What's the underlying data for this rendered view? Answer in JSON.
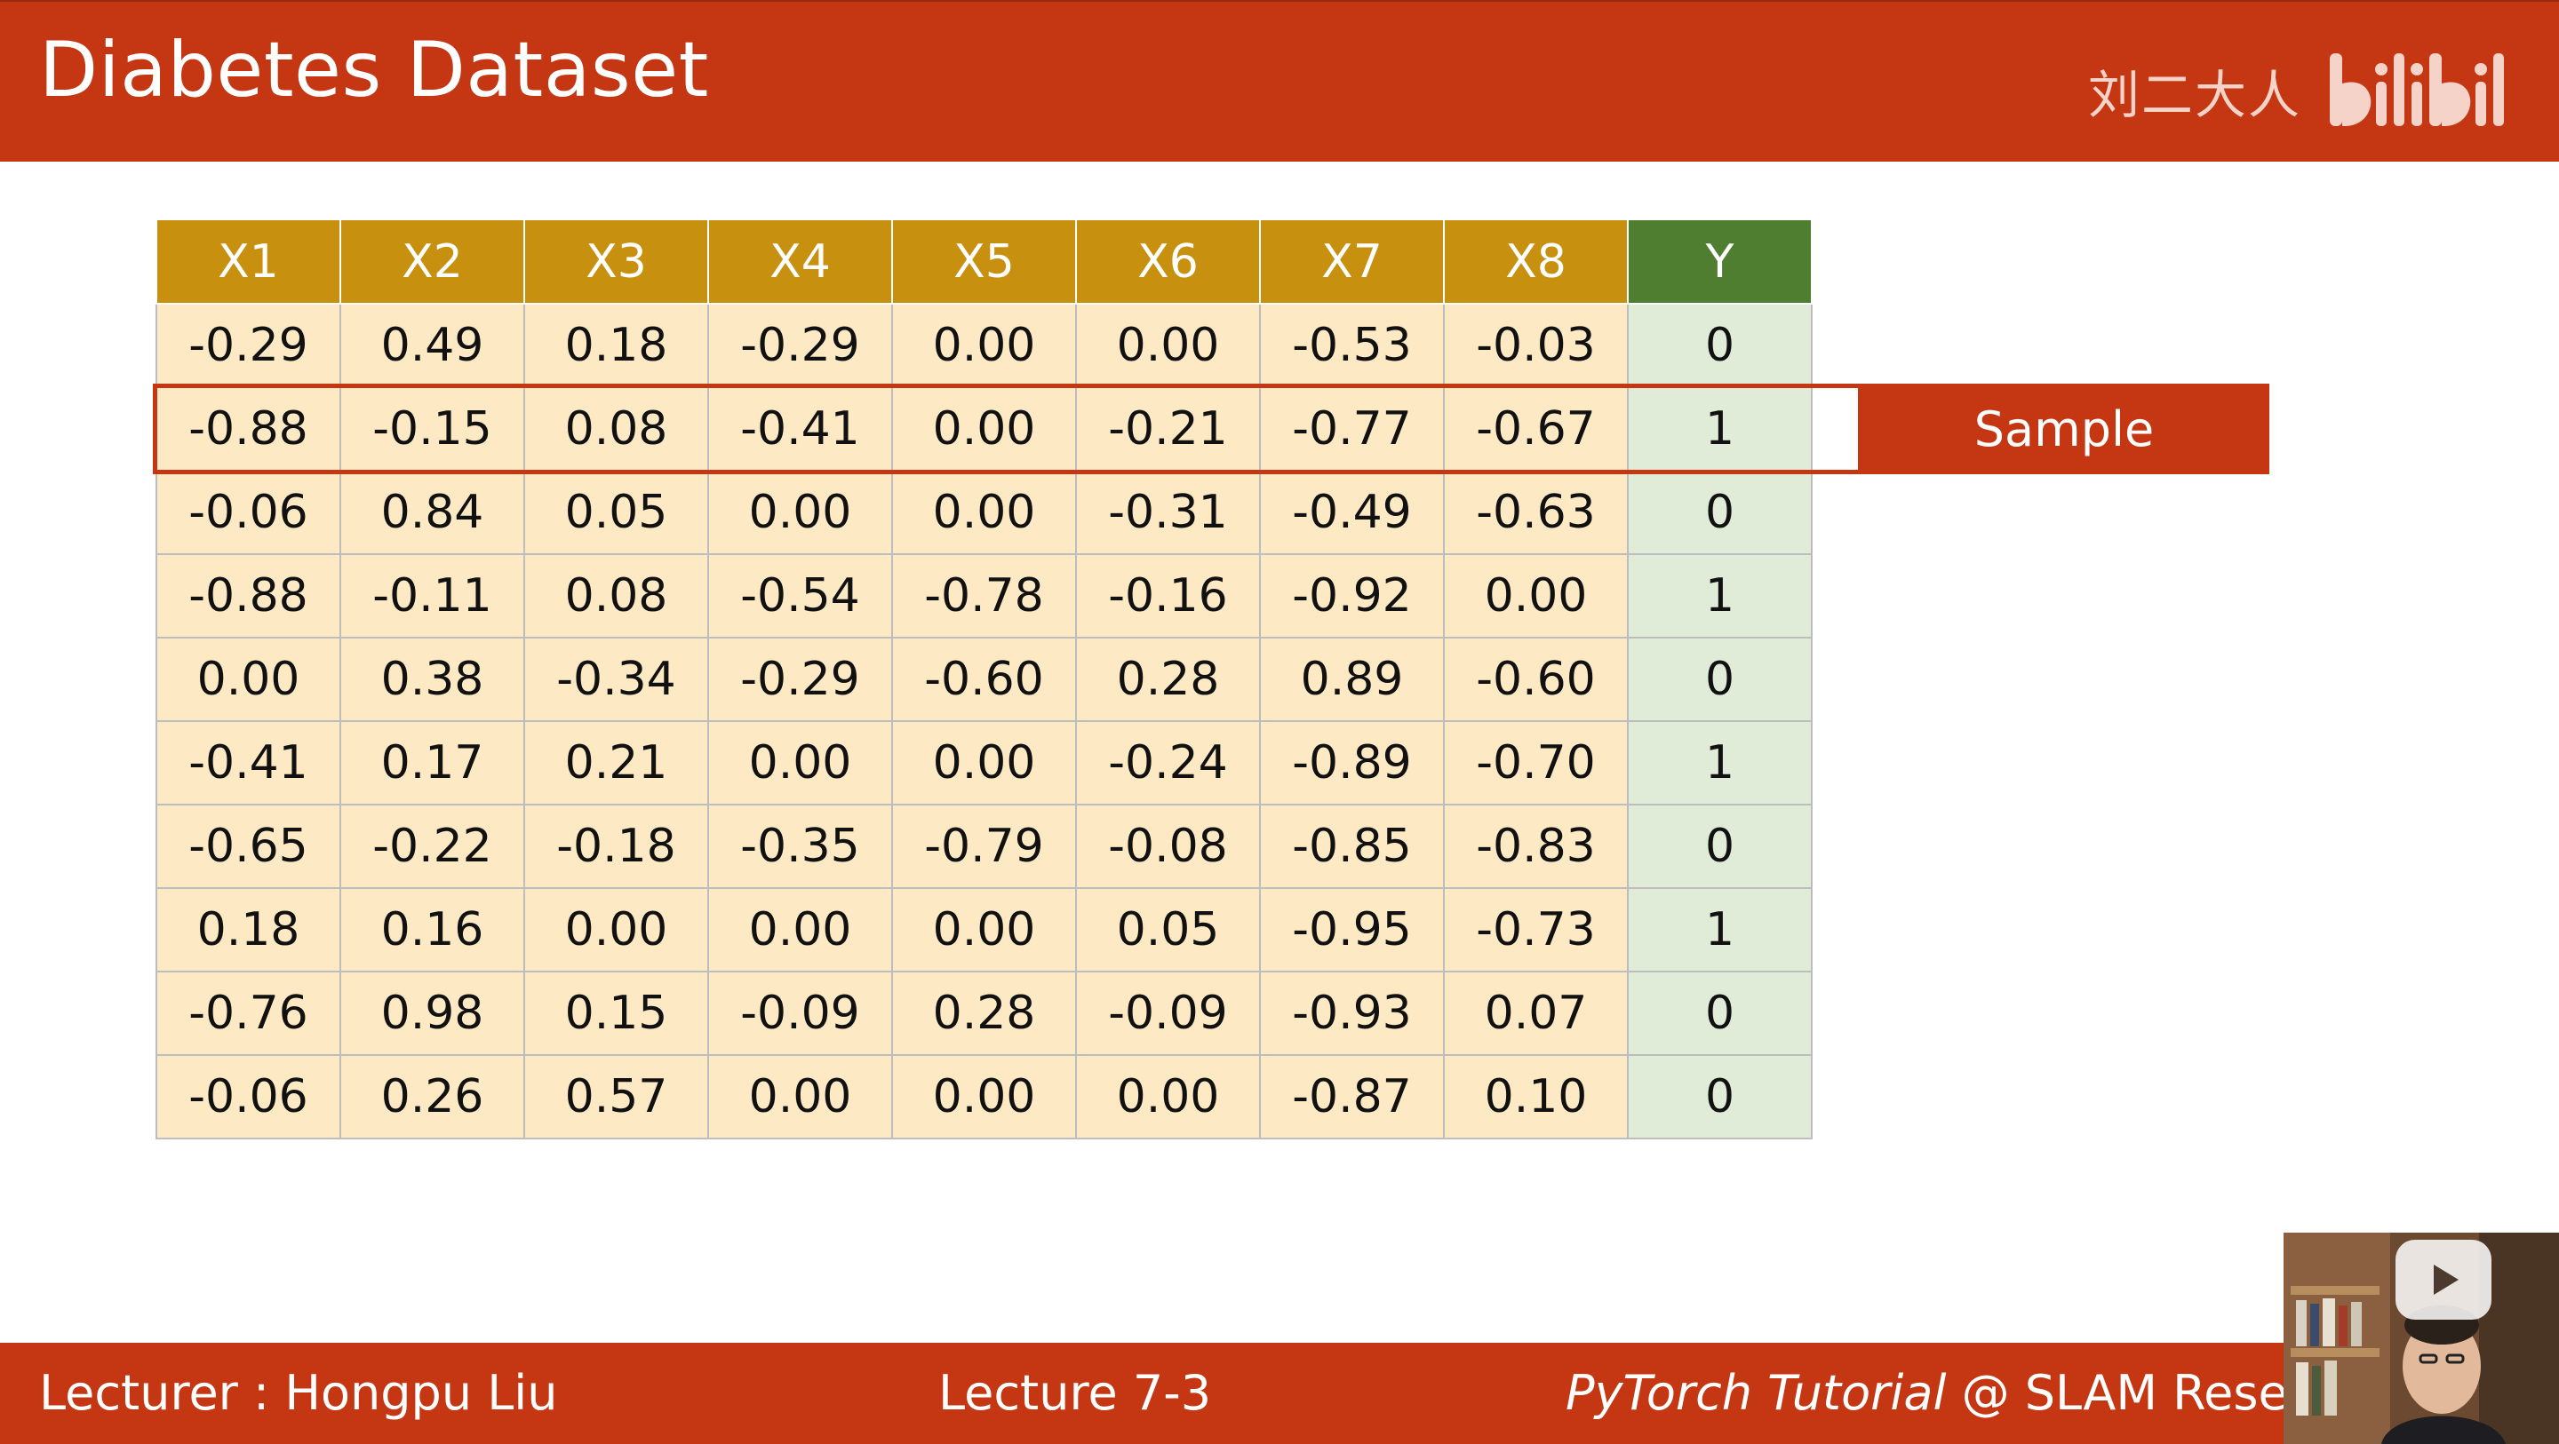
{
  "header": {
    "title": "Diabetes Dataset",
    "watermark_author": "刘二大人",
    "watermark_logo": "bilibili",
    "background_color": "#c43712"
  },
  "table": {
    "columns": [
      "X1",
      "X2",
      "X3",
      "X4",
      "X5",
      "X6",
      "X7",
      "X8",
      "Y"
    ],
    "rows": [
      [
        "-0.29",
        "0.49",
        "0.18",
        "-0.29",
        "0.00",
        "0.00",
        "-0.53",
        "-0.03",
        "0"
      ],
      [
        "-0.88",
        "-0.15",
        "0.08",
        "-0.41",
        "0.00",
        "-0.21",
        "-0.77",
        "-0.67",
        "1"
      ],
      [
        "-0.06",
        "0.84",
        "0.05",
        "0.00",
        "0.00",
        "-0.31",
        "-0.49",
        "-0.63",
        "0"
      ],
      [
        "-0.88",
        "-0.11",
        "0.08",
        "-0.54",
        "-0.78",
        "-0.16",
        "-0.92",
        "0.00",
        "1"
      ],
      [
        "0.00",
        "0.38",
        "-0.34",
        "-0.29",
        "-0.60",
        "0.28",
        "0.89",
        "-0.60",
        "0"
      ],
      [
        "-0.41",
        "0.17",
        "0.21",
        "0.00",
        "0.00",
        "-0.24",
        "-0.89",
        "-0.70",
        "1"
      ],
      [
        "-0.65",
        "-0.22",
        "-0.18",
        "-0.35",
        "-0.79",
        "-0.08",
        "-0.85",
        "-0.83",
        "0"
      ],
      [
        "0.18",
        "0.16",
        "0.00",
        "0.00",
        "0.00",
        "0.05",
        "-0.95",
        "-0.73",
        "1"
      ],
      [
        "-0.76",
        "0.98",
        "0.15",
        "-0.09",
        "0.28",
        "-0.09",
        "-0.93",
        "0.07",
        "0"
      ],
      [
        "-0.06",
        "0.26",
        "0.57",
        "0.00",
        "0.00",
        "0.00",
        "-0.87",
        "0.10",
        "0"
      ]
    ],
    "feature_header_color": "#c8900f",
    "label_header_color": "#4f7e31",
    "feature_cell_color": "#fde9c4",
    "label_cell_color": "#e1ecd8"
  },
  "highlight": {
    "label": "Sample",
    "row_index": 1,
    "color": "#c43712"
  },
  "footer": {
    "lecturer": "Lecturer : Hongpu Liu",
    "lecture": "Lecture 7-3",
    "course_italic": "PyTorch Tutorial",
    "course_rest": " @ SLAM Resea"
  },
  "overlay": {
    "play_icon": "play-icon"
  }
}
